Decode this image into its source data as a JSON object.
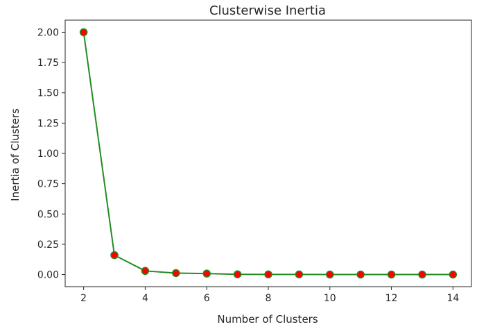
{
  "chart_data": {
    "type": "line",
    "title": "Clusterwise Inertia",
    "xlabel": "Number of Clusters",
    "ylabel": "Inertia of Clusters",
    "x": [
      2,
      3,
      4,
      5,
      6,
      7,
      8,
      9,
      10,
      11,
      12,
      13,
      14
    ],
    "series": [
      {
        "values": [
          2.0,
          0.16,
          0.03,
          0.012,
          0.008,
          0.002,
          0.001,
          0.001,
          0.0,
          0.0,
          0.0,
          0.0,
          0.0
        ],
        "line_color": "#228b22",
        "marker_face": "#ff0000",
        "marker_edge": "#228b22"
      }
    ],
    "xlim": [
      1.4,
      14.6
    ],
    "ylim": [
      -0.1,
      2.1
    ],
    "xticks": [
      2,
      4,
      6,
      8,
      10,
      12,
      14
    ],
    "xtick_labels": [
      "2",
      "4",
      "6",
      "8",
      "10",
      "12",
      "14"
    ],
    "yticks": [
      0.0,
      0.25,
      0.5,
      0.75,
      1.0,
      1.25,
      1.5,
      1.75,
      2.0
    ],
    "ytick_labels": [
      "0.00",
      "0.25",
      "0.50",
      "0.75",
      "1.00",
      "1.25",
      "1.50",
      "1.75",
      "2.00"
    ],
    "grid": false,
    "legend": false
  }
}
